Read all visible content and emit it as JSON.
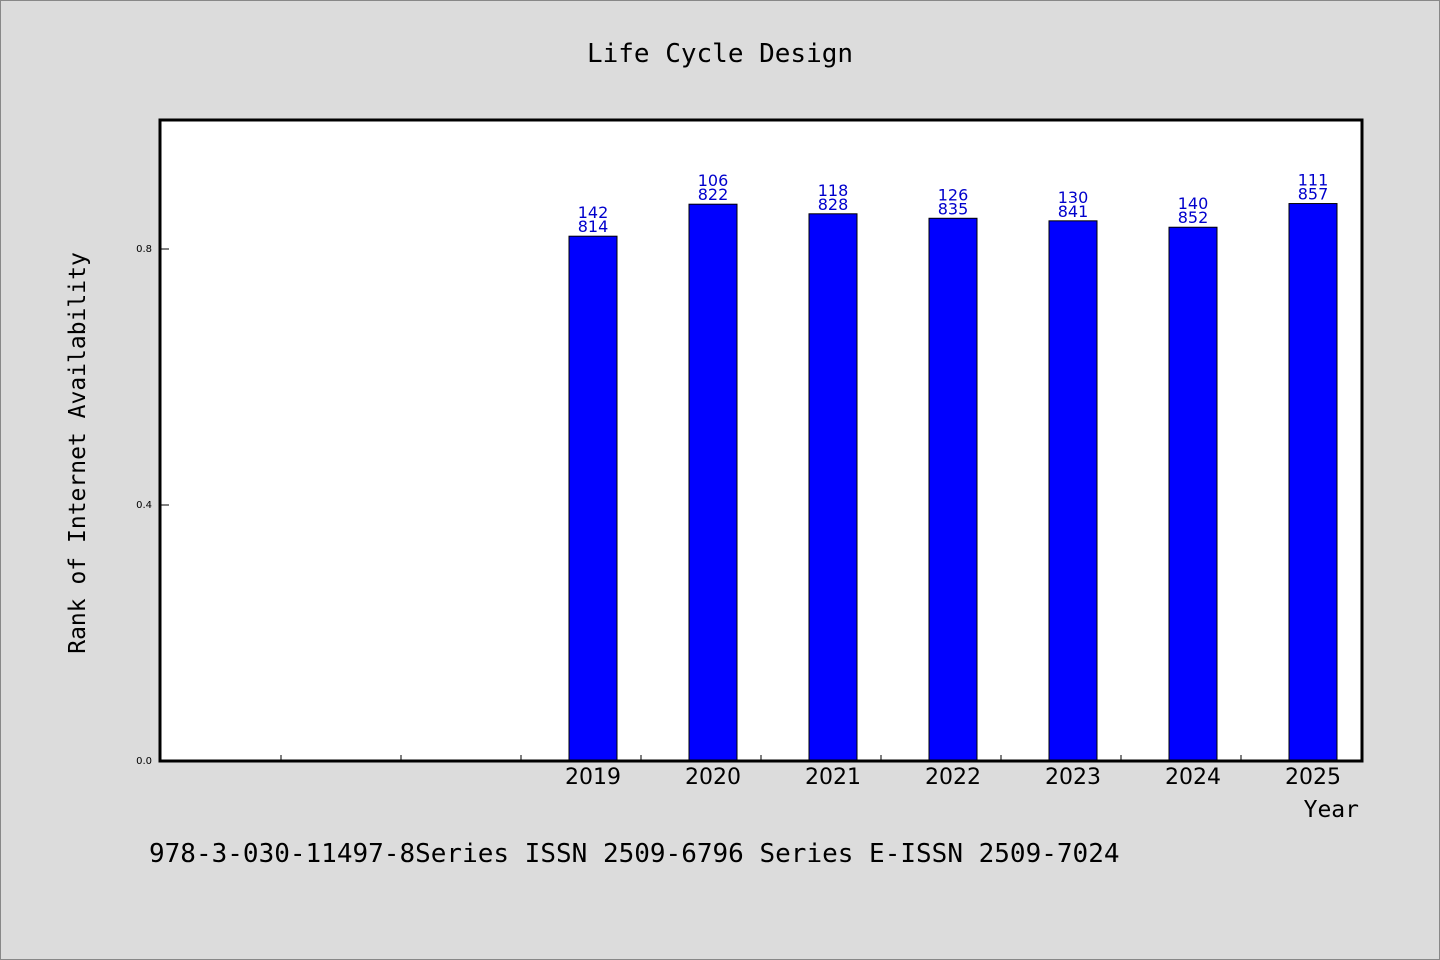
{
  "chart_data": {
    "type": "bar",
    "title": "Life Cycle Design",
    "xlabel": "Year",
    "ylabel": "Rank of Internet Availability",
    "footer": "978-3-030-11497-8Series ISSN 2509-6796 Series E-ISSN 2509-7024",
    "categories": [
      "",
      "",
      "",
      "2019",
      "2020",
      "2021",
      "2022",
      "2023",
      "2024",
      "2025"
    ],
    "values": [
      null,
      null,
      null,
      0.814,
      0.822,
      0.828,
      0.835,
      0.841,
      0.852,
      0.857
    ],
    "bar_heights": [
      null,
      null,
      null,
      0.82,
      0.87,
      0.855,
      0.848,
      0.844,
      0.834,
      0.871
    ],
    "top_labels": [
      "",
      "",
      "",
      "142",
      "106",
      "118",
      "126",
      "130",
      "140",
      "111"
    ],
    "bottom_labels": [
      "",
      "",
      "",
      "814",
      "822",
      "828",
      "835",
      "841",
      "852",
      "857"
    ],
    "yticks": [
      0.0,
      0.4,
      0.8
    ],
    "ytick_labels": [
      "0.0",
      "0.4",
      "0.8"
    ],
    "ylim": [
      0,
      1.0
    ],
    "grid": false,
    "bar_color": "#0000ff",
    "label_color": "#0000cc"
  }
}
